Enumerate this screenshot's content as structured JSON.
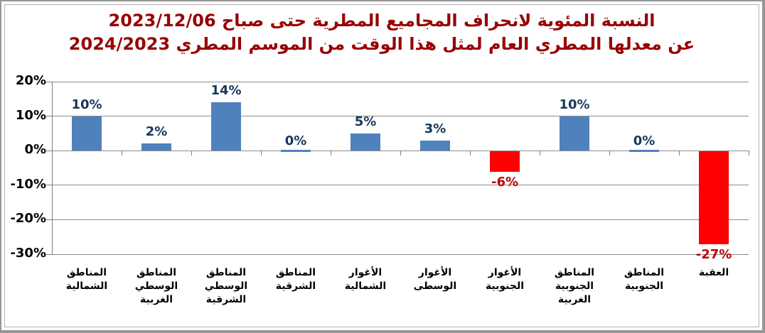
{
  "title": {
    "line1": "النسبة المئوية لانحراف المجاميع المطرية حتى صباح 2023/12/06",
    "line2": "عن معدلها المطري العام لمثل هذا الوقت من الموسم المطري 2024/2023"
  },
  "colors": {
    "title_text": "#990000",
    "bar_positive": "#4F81BD",
    "bar_negative": "#FF0000",
    "label_positive": "#17375E",
    "label_negative": "#C00000",
    "gridline": "#8C8C8C",
    "axis_line": "#808080",
    "axis_text": "#000000"
  },
  "chart_data": {
    "type": "bar",
    "title": "النسبة المئوية لانحراف المجاميع المطرية حتى صباح 2023/12/06 عن معدلها المطري العام لمثل هذا الوقت من الموسم المطري 2024/2023",
    "categories": [
      "المناطق الشمالية",
      "المناطق الوسطي الغربية",
      "المناطق الوسطي الشرقية",
      "المناطق الشرقية",
      "الأغوار الشمالية",
      "الأغوار الوسطى",
      "الأغوار الجنوبية",
      "المناطق الجنوبية الغربية",
      "المناطق الجنوبية",
      "العقبة"
    ],
    "category_display": [
      "المناطق\nالشمالية",
      "المناطق\nالوسطي\nالغربية",
      "المناطق\nالوسطي\nالشرقية",
      "المناطق\nالشرقية",
      "الأغوار\nالشمالية",
      "الأغوار\nالوسطى",
      "الأغوار\nالجنوبية",
      "المناطق\nالجنوبية\nالغربية",
      "المناطق\nالجنوبية",
      "العقبة"
    ],
    "values": [
      10,
      2,
      14,
      0,
      5,
      3,
      -6,
      10,
      0,
      -27
    ],
    "value_labels": [
      "10%",
      "2%",
      "14%",
      "0%",
      "5%",
      "3%",
      "-6%",
      "10%",
      "0%",
      "-27%"
    ],
    "y_ticks": [
      {
        "value": 20,
        "label": "20%"
      },
      {
        "value": 10,
        "label": "10%"
      },
      {
        "value": 0,
        "label": "0%"
      },
      {
        "value": -10,
        "label": "-10%"
      },
      {
        "value": -20,
        "label": "-20%"
      },
      {
        "value": -30,
        "label": "-30%"
      }
    ],
    "ylim": [
      -30,
      20
    ],
    "xlabel": "",
    "ylabel": "",
    "grid": true,
    "legend": false
  }
}
